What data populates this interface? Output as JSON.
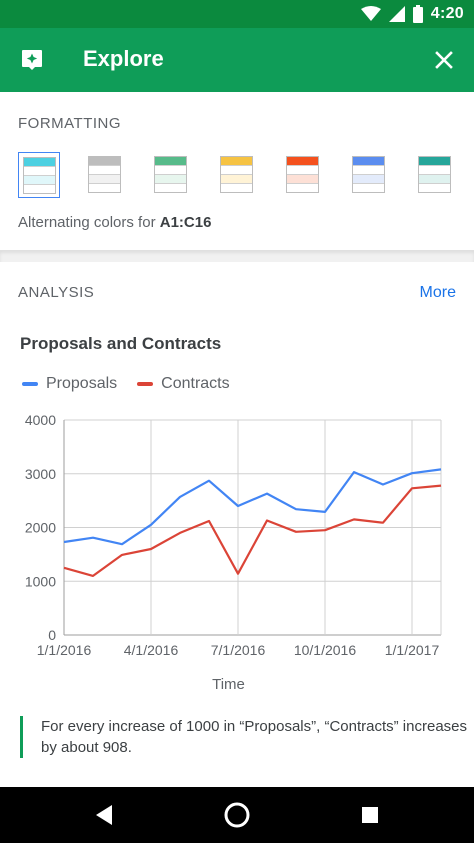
{
  "status_bar": {
    "time": "4:20"
  },
  "app_bar": {
    "title": "Explore"
  },
  "formatting": {
    "section_title": "FORMATTING",
    "alternating_prefix": "Alternating colors for ",
    "range": "A1:C16",
    "swatches": [
      {
        "header": "#4dd0e1",
        "band": "#e0f7fa",
        "selected": true
      },
      {
        "header": "#bdbdbd",
        "band": "#f1f1f1",
        "selected": false
      },
      {
        "header": "#57bb8a",
        "band": "#e7f6ee",
        "selected": false
      },
      {
        "header": "#f6c343",
        "band": "#fff3d6",
        "selected": false
      },
      {
        "header": "#f4511e",
        "band": "#fde0d6",
        "selected": false
      },
      {
        "header": "#5b8def",
        "band": "#e3ebfb",
        "selected": false
      },
      {
        "header": "#26a69a",
        "band": "#dff2ef",
        "selected": false
      }
    ]
  },
  "analysis": {
    "section_title": "ANALYSIS",
    "more_label": "More",
    "insight_text": "For every increase of 1000 in “Proposals”, “Contracts” increases by about 908."
  },
  "chart_data": {
    "type": "line",
    "title": "Proposals and Contracts",
    "xlabel": "Time",
    "ylabel": "",
    "ylim": [
      0,
      4000
    ],
    "yticks": [
      "0",
      "1000",
      "2000",
      "3000",
      "4000"
    ],
    "xticks": [
      "1/1/2016",
      "4/1/2016",
      "7/1/2016",
      "10/1/2016",
      "1/1/2017"
    ],
    "legend_placement": "top-left",
    "grid": true,
    "series": [
      {
        "name": "Proposals",
        "color": "#4285f4",
        "values": [
          1730,
          1810,
          1690,
          2050,
          2570,
          2870,
          2400,
          2630,
          2340,
          2290,
          3030,
          2800,
          3010,
          3080
        ]
      },
      {
        "name": "Contracts",
        "color": "#db4437",
        "values": [
          1250,
          1100,
          1490,
          1600,
          1900,
          2120,
          1140,
          2130,
          1920,
          1950,
          2150,
          2090,
          2730,
          2780
        ]
      }
    ]
  }
}
